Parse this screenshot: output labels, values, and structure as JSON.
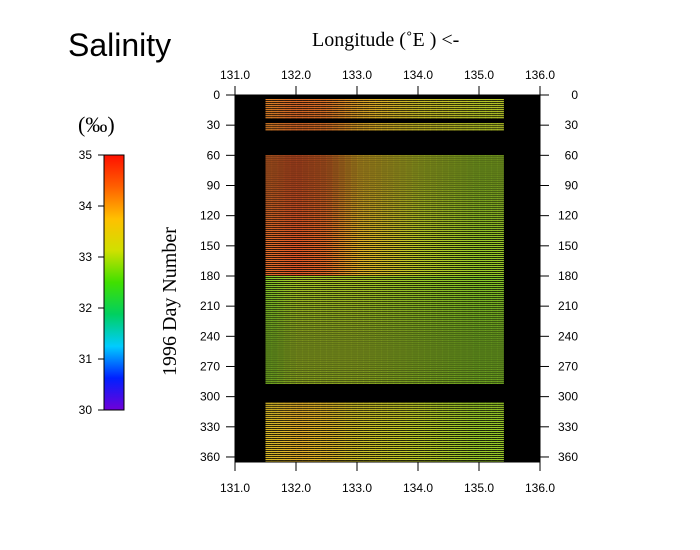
{
  "chart_data": {
    "type": "heatmap",
    "title": "Salinity",
    "xlabel": "Longitude (˚E ) <-",
    "ylabel": "1996 Day Number",
    "x_ticks": [
      "131.0",
      "132.0",
      "133.0",
      "134.0",
      "135.0",
      "136.0"
    ],
    "y_ticks": [
      "0",
      "30",
      "60",
      "90",
      "120",
      "150",
      "180",
      "210",
      "240",
      "270",
      "300",
      "330",
      "360"
    ],
    "xlim": [
      131.0,
      136.0
    ],
    "ylim": [
      0,
      365
    ],
    "colorbar": {
      "unit": "(‰)",
      "ticks": [
        "35",
        "34",
        "33",
        "32",
        "31",
        "30"
      ],
      "range": [
        30,
        35
      ],
      "colors": [
        "#7000d8",
        "#0020ff",
        "#00ccff",
        "#00d060",
        "#40e000",
        "#d0e000",
        "#ffc000",
        "#ff6000",
        "#ff1000"
      ]
    },
    "data_extent": {
      "lon_start": 131.5,
      "lon_end": 135.3,
      "no_data_days": [
        [
          0,
          3
        ],
        [
          23,
          27
        ],
        [
          36,
          60
        ],
        [
          288,
          305
        ]
      ]
    },
    "values_by_longitude": [
      {
        "lon": 131.6,
        "days_30": 34.2,
        "days_60_180": 34.4,
        "days_180_290": 32.8,
        "days_300_365": 33.6
      },
      {
        "lon": 132.0,
        "days_30": 34.4,
        "days_60_180": 34.6,
        "days_180_290": 33.0,
        "days_300_365": 33.8
      },
      {
        "lon": 132.5,
        "days_30": 34.3,
        "days_60_180": 34.4,
        "days_180_290": 33.0,
        "days_300_365": 33.7
      },
      {
        "lon": 133.0,
        "days_30": 33.9,
        "days_60_180": 33.8,
        "days_180_290": 33.0,
        "days_300_365": 33.4
      },
      {
        "lon": 134.0,
        "days_30": 33.4,
        "days_60_180": 33.1,
        "days_180_290": 32.9,
        "days_300_365": 33.1
      },
      {
        "lon": 135.0,
        "days_30": 33.1,
        "days_60_180": 32.9,
        "days_180_290": 32.8,
        "days_300_365": 32.9
      }
    ]
  }
}
